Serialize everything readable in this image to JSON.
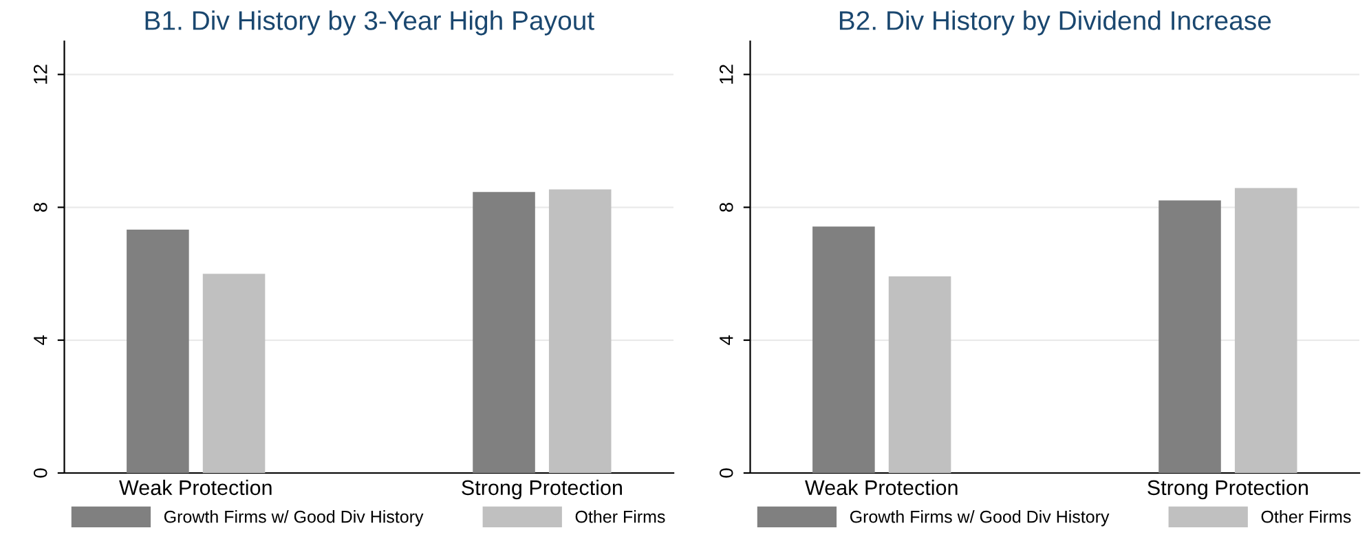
{
  "chart_data": [
    {
      "type": "bar",
      "title": "B1. Div History by 3-Year High Payout",
      "categories": [
        "Weak Protection",
        "Strong Protection"
      ],
      "series": [
        {
          "name": "Growth Firms w/ Good Div History",
          "color": "#808080",
          "values": [
            7.33,
            8.46
          ]
        },
        {
          "name": "Other Firms",
          "color": "#c0c0c0",
          "values": [
            6.0,
            8.54
          ]
        }
      ],
      "ylim": [
        0,
        13
      ],
      "yticks": [
        0,
        4,
        8,
        12
      ],
      "grid": "y",
      "legend": "bottom"
    },
    {
      "type": "bar",
      "title": "B2. Div History by Dividend Increase",
      "categories": [
        "Weak Protection",
        "Strong Protection"
      ],
      "series": [
        {
          "name": "Growth Firms w/ Good Div History",
          "color": "#808080",
          "values": [
            7.42,
            8.21
          ]
        },
        {
          "name": "Other Firms",
          "color": "#c0c0c0",
          "values": [
            5.92,
            8.58
          ]
        }
      ],
      "ylim": [
        0,
        13
      ],
      "yticks": [
        0,
        4,
        8,
        12
      ],
      "grid": "y",
      "legend": "bottom"
    }
  ]
}
